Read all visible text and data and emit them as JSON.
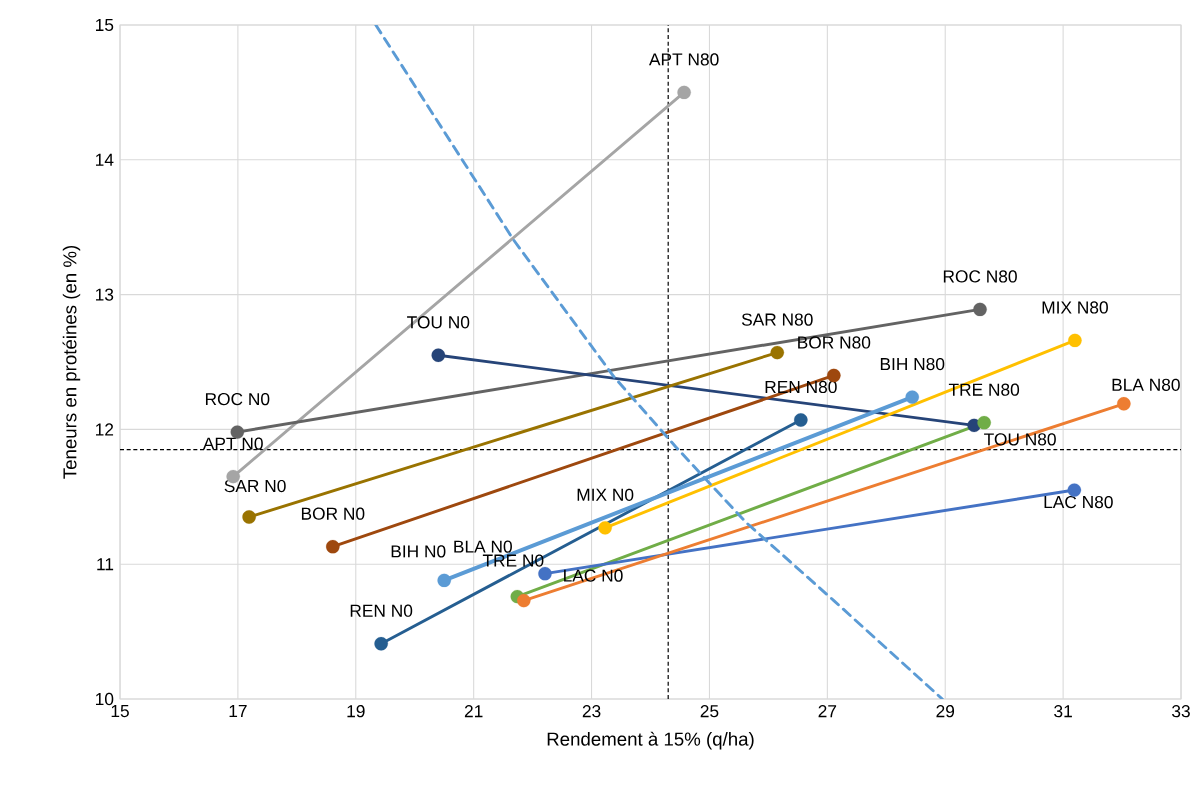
{
  "chart_data": {
    "type": "line",
    "xlabel": "Rendement à 15% (q/ha)",
    "ylabel": "Teneurs en protéines (en %)",
    "xlim": [
      15,
      33
    ],
    "ylim": [
      10,
      15
    ],
    "xticks": [
      15,
      17,
      19,
      21,
      23,
      25,
      27,
      29,
      31,
      33
    ],
    "yticks": [
      10,
      11,
      12,
      13,
      14,
      15
    ],
    "grid": true,
    "marker": "circle",
    "line_style": "solid",
    "series": [
      {
        "color": "#a5a5a5",
        "x": [
          16.92,
          24.57
        ],
        "values": [
          11.65,
          14.5
        ],
        "value_labels": [
          "APT N0",
          "APT N80"
        ]
      },
      {
        "color": "#636363",
        "x": [
          16.99,
          29.59
        ],
        "values": [
          11.98,
          12.89
        ],
        "value_labels": [
          "ROC N0",
          "ROC N80"
        ]
      },
      {
        "color": "#264478",
        "x": [
          20.4,
          29.49
        ],
        "values": [
          12.55,
          12.03
        ],
        "value_labels": [
          "TOU N0",
          "TOU N80"
        ]
      },
      {
        "color": "#997300",
        "x": [
          17.19,
          26.15
        ],
        "values": [
          11.35,
          12.57
        ],
        "value_labels": [
          "SAR N0",
          "SAR N80"
        ]
      },
      {
        "color": "#9e480e",
        "x": [
          18.61,
          27.11
        ],
        "values": [
          11.13,
          12.4
        ],
        "value_labels": [
          "BOR N0",
          "BOR N80"
        ]
      },
      {
        "color": "#255e91",
        "x": [
          19.43,
          26.55
        ],
        "values": [
          10.41,
          12.07
        ],
        "value_labels": [
          "REN N0",
          "REN N80"
        ]
      },
      {
        "color": "#5b9bd5",
        "x": [
          20.5,
          28.44
        ],
        "values": [
          10.88,
          12.24
        ],
        "value_labels": [
          "BIH N0",
          "BIH N80"
        ]
      },
      {
        "color": "#ffc000",
        "x": [
          23.23,
          31.2
        ],
        "values": [
          11.27,
          12.66
        ],
        "value_labels": [
          "MIX N0",
          "MIX N80"
        ]
      },
      {
        "color": "#70ad47",
        "x": [
          21.74,
          29.66
        ],
        "values": [
          10.76,
          12.05
        ],
        "value_labels": [
          "TRE N0",
          "TRE N80"
        ]
      },
      {
        "color": "#4472c4",
        "x": [
          22.21,
          31.19
        ],
        "values": [
          10.93,
          11.55
        ],
        "value_labels": [
          "LAC N0",
          "LAC N80"
        ]
      },
      {
        "color": "#ed7d31",
        "x": [
          21.85,
          32.03
        ],
        "values": [
          10.73,
          12.19
        ],
        "value_labels": [
          "BLA N0",
          "BLA N80"
        ]
      },
      {
        "color": "#5b9bd5",
        "marker": "none",
        "line_style": "dashed",
        "x": [
          19.34,
          21.67,
          23.38,
          24.43,
          25.62,
          27.11,
          28.95
        ],
        "values": [
          15.0,
          13.41,
          12.39,
          11.87,
          11.31,
          10.73,
          10.0
        ]
      }
    ],
    "ref_lines": [
      {
        "axis": "x",
        "value": 24.3,
        "color": "#000000",
        "line_style": "dashed"
      },
      {
        "axis": "y",
        "value": 11.85,
        "color": "#000000",
        "line_style": "dashed"
      }
    ]
  }
}
